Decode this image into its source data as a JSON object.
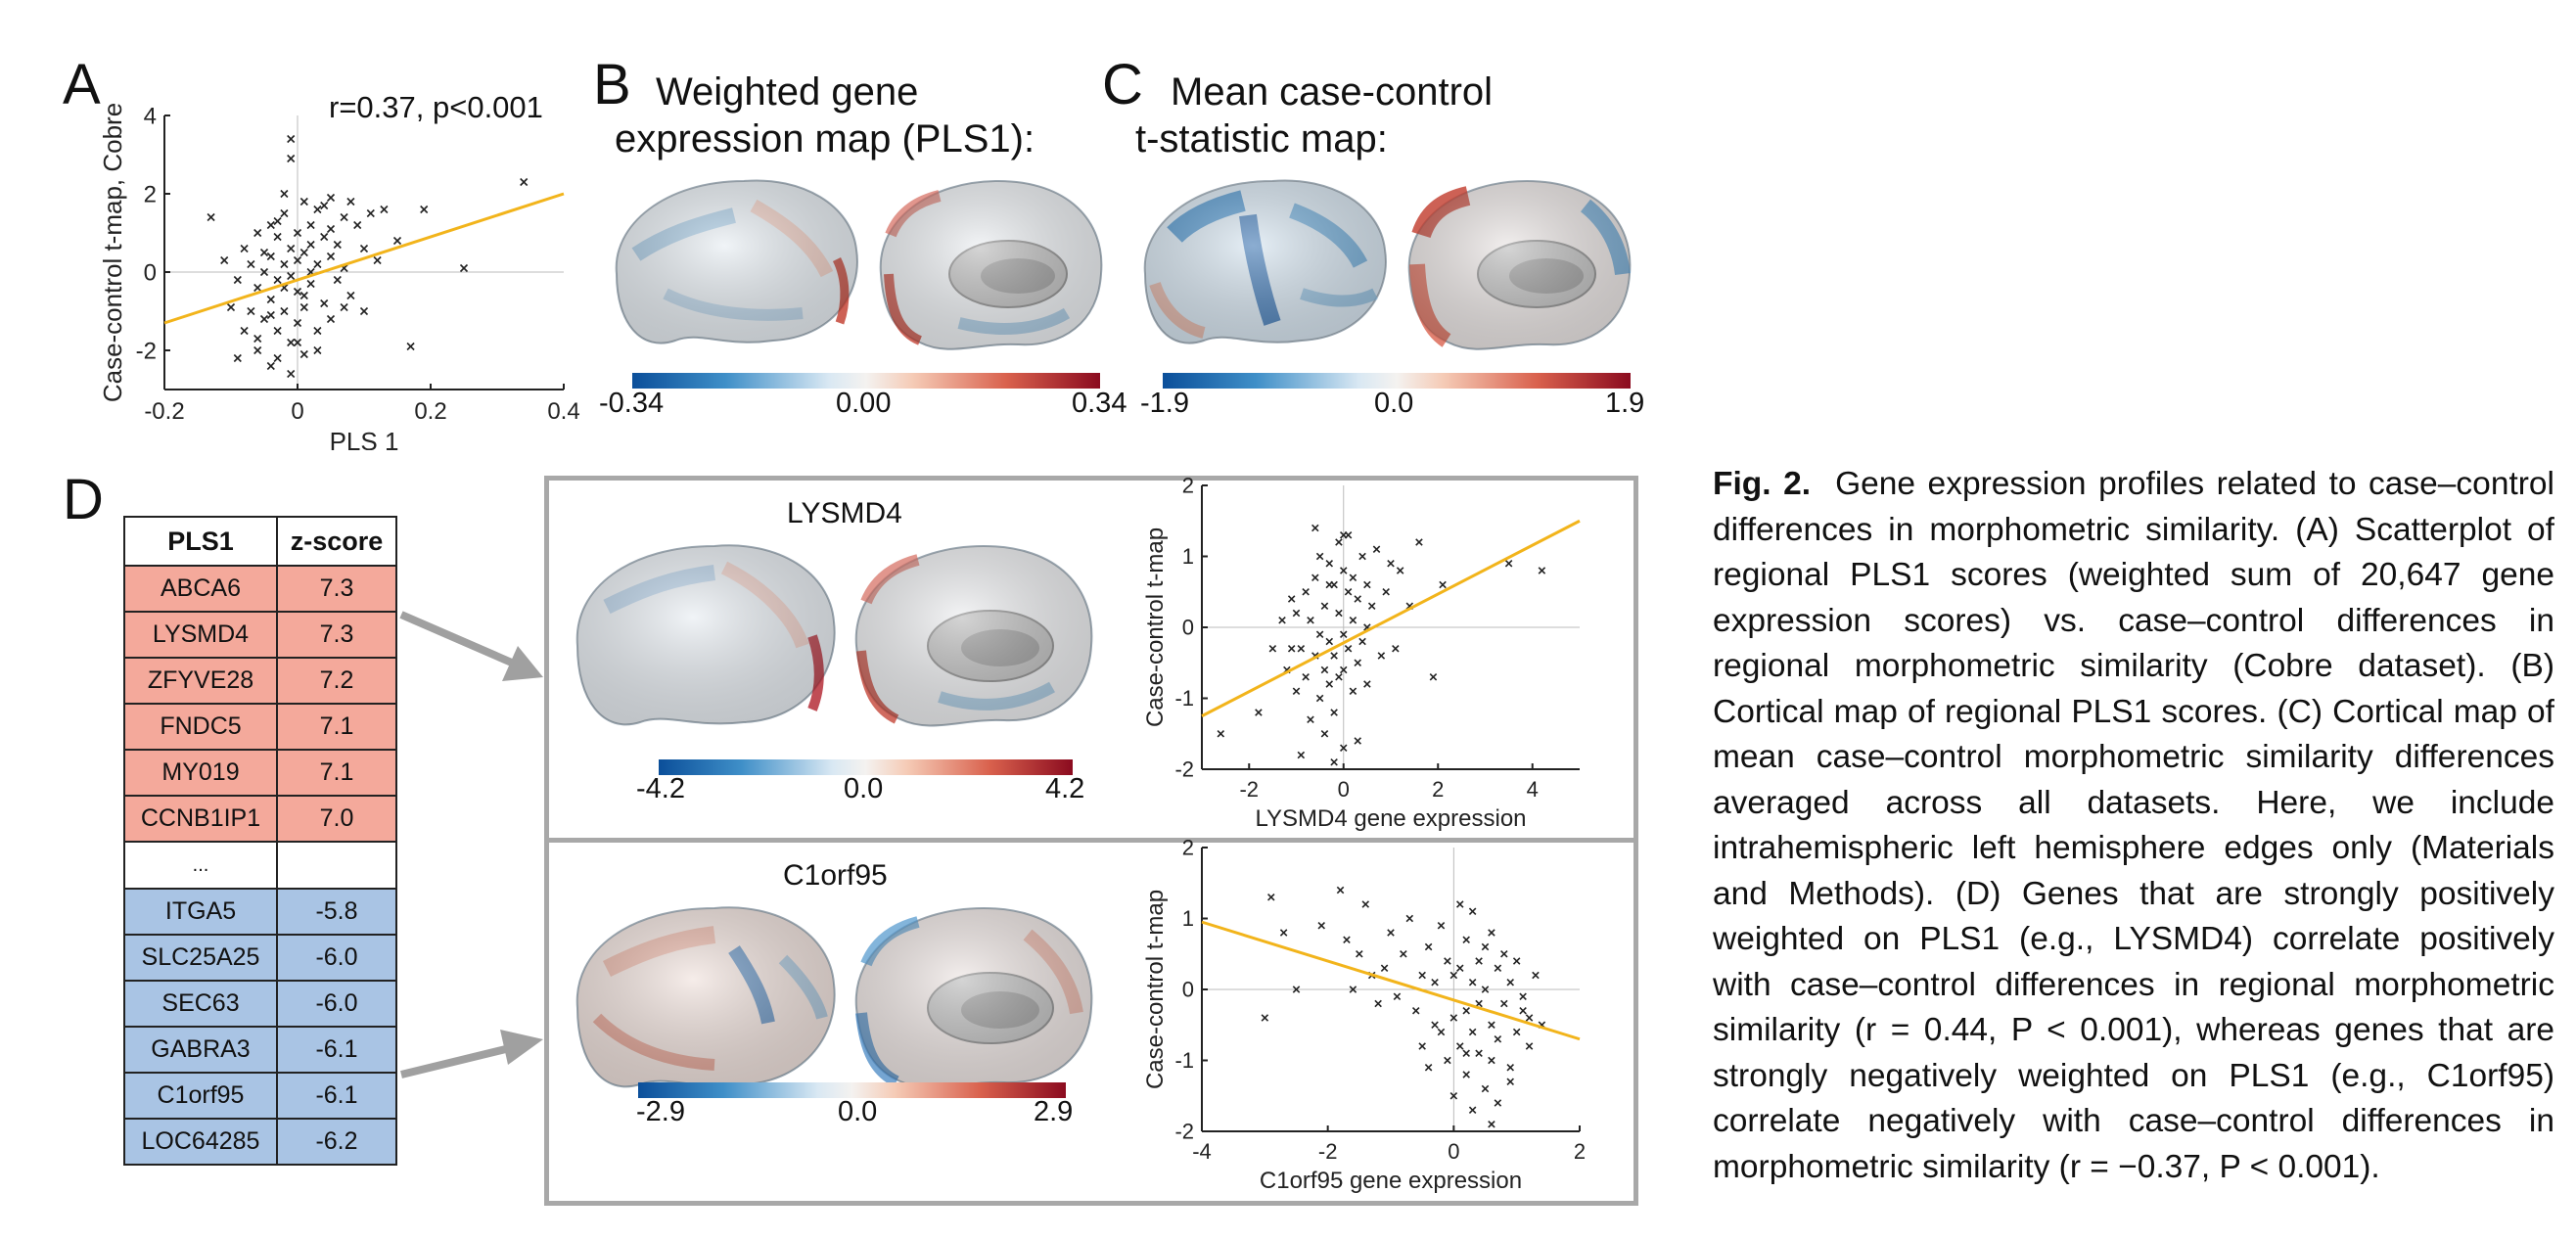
{
  "panels": {
    "A": {
      "letter": "A",
      "annotation": "r=0.37, p<0.001",
      "chart_data": {
        "type": "scatter",
        "xlabel": "PLS 1",
        "ylabel": "Case-control t-map, Cobre",
        "xlim": [
          -0.2,
          0.4
        ],
        "ylim": [
          -3,
          4
        ],
        "xticks": [
          "-0.2",
          "0",
          "0.2",
          "0.4"
        ],
        "yticks": [
          "-2",
          "0",
          "2",
          "4"
        ],
        "fit_line": {
          "x": [
            -0.2,
            0.4
          ],
          "y": [
            -1.3,
            2.0
          ]
        },
        "line_color": "#f2b41b",
        "points_x": [
          -0.13,
          -0.11,
          -0.1,
          -0.09,
          -0.08,
          -0.08,
          -0.07,
          -0.07,
          -0.06,
          -0.06,
          -0.06,
          -0.05,
          -0.05,
          -0.05,
          -0.04,
          -0.04,
          -0.04,
          -0.04,
          -0.03,
          -0.03,
          -0.03,
          -0.03,
          -0.02,
          -0.02,
          -0.02,
          -0.02,
          -0.01,
          -0.01,
          -0.01,
          -0.01,
          0.0,
          0.0,
          0.0,
          0.0,
          0.01,
          0.01,
          0.01,
          0.01,
          0.02,
          0.02,
          0.02,
          0.03,
          0.03,
          0.03,
          0.04,
          0.04,
          0.04,
          0.05,
          0.05,
          0.05,
          0.06,
          0.06,
          0.07,
          0.07,
          0.08,
          0.08,
          0.09,
          0.1,
          0.1,
          0.11,
          0.12,
          0.13,
          0.15,
          0.17,
          0.19,
          0.25,
          0.34,
          -0.01,
          -0.01,
          0.01,
          -0.06,
          -0.09,
          0.02,
          0.03,
          -0.02,
          0.05,
          0.0,
          -0.03,
          0.07,
          -0.04
        ],
        "points_y": [
          1.4,
          0.3,
          -0.9,
          -0.2,
          0.6,
          -1.5,
          0.2,
          -1.0,
          1.0,
          -0.4,
          -2.0,
          0.5,
          -1.2,
          0.0,
          -0.7,
          1.2,
          -2.4,
          0.4,
          -1.5,
          0.9,
          -0.2,
          -2.2,
          0.2,
          -1.0,
          1.5,
          -0.4,
          0.6,
          -1.8,
          3.4,
          2.9,
          -0.5,
          1.0,
          -1.3,
          0.3,
          1.8,
          -0.9,
          0.5,
          -2.1,
          1.2,
          -0.3,
          0.7,
          1.6,
          -1.5,
          0.2,
          0.9,
          -0.8,
          1.7,
          0.4,
          -1.2,
          1.9,
          0.7,
          -0.2,
          1.4,
          0.1,
          1.8,
          -0.6,
          1.2,
          0.6,
          -1.0,
          1.5,
          0.3,
          1.6,
          0.8,
          -1.9,
          1.6,
          0.1,
          2.3,
          -2.6,
          -0.1,
          -0.6,
          -1.7,
          -2.2,
          0.0,
          -2.0,
          2.0,
          1.1,
          -1.8,
          1.3,
          -0.9,
          -1.1
        ]
      }
    },
    "B": {
      "letter": "B",
      "title_line1": "Weighted gene",
      "title_line2": "expression map (PLS1):",
      "colorbar": {
        "min": "-0.34",
        "mid": "0.00",
        "max": "0.34"
      }
    },
    "C": {
      "letter": "C",
      "title_line1": "Mean case-control",
      "title_line2": "t-statistic map:",
      "colorbar": {
        "min": "-1.9",
        "mid": "0.0",
        "max": "1.9"
      }
    },
    "D": {
      "letter": "D",
      "table": {
        "headers": [
          "PLS1",
          "z-score"
        ],
        "positive": [
          {
            "gene": "ABCA6",
            "z": "7.3"
          },
          {
            "gene": "LYSMD4",
            "z": "7.3"
          },
          {
            "gene": "ZFYVE28",
            "z": "7.2"
          },
          {
            "gene": "FNDC5",
            "z": "7.1"
          },
          {
            "gene": "MY019",
            "z": "7.1"
          },
          {
            "gene": "CCNB1IP1",
            "z": "7.0"
          }
        ],
        "ellipsis": "...",
        "negative": [
          {
            "gene": "ITGA5",
            "z": "-5.8"
          },
          {
            "gene": "SLC25A25",
            "z": "-6.0"
          },
          {
            "gene": "SEC63",
            "z": "-6.0"
          },
          {
            "gene": "GABRA3",
            "z": "-6.1"
          },
          {
            "gene": "C1orf95",
            "z": "-6.1"
          },
          {
            "gene": "LOC64285",
            "z": "-6.2"
          }
        ]
      },
      "top_box": {
        "gene_title": "LYSMD4",
        "colorbar": {
          "min": "-4.2",
          "mid": "0.0",
          "max": "4.2"
        },
        "chart_data": {
          "type": "scatter",
          "xlabel": "LYSMD4 gene expression",
          "ylabel": "Case-control t-map",
          "xlim": [
            -3,
            5
          ],
          "ylim": [
            -2,
            2
          ],
          "xticks": [
            "-2",
            "0",
            "2",
            "4"
          ],
          "yticks": [
            "-2",
            "-1",
            "0",
            "1",
            "2"
          ],
          "fit_line": {
            "x": [
              -3,
              5
            ],
            "y": [
              -1.25,
              1.5
            ]
          },
          "points_x": [
            -2.6,
            -1.8,
            -1.5,
            -1.3,
            -1.2,
            -1.1,
            -1.0,
            -1.0,
            -0.9,
            -0.9,
            -0.8,
            -0.8,
            -0.7,
            -0.7,
            -0.6,
            -0.6,
            -0.5,
            -0.5,
            -0.5,
            -0.4,
            -0.4,
            -0.4,
            -0.3,
            -0.3,
            -0.3,
            -0.2,
            -0.2,
            -0.2,
            -0.1,
            -0.1,
            -0.1,
            0.0,
            0.0,
            0.0,
            0.0,
            0.1,
            0.1,
            0.1,
            0.2,
            0.2,
            0.2,
            0.3,
            0.3,
            0.4,
            0.4,
            0.5,
            0.5,
            0.6,
            0.7,
            0.8,
            0.9,
            1.0,
            1.1,
            1.2,
            1.4,
            1.6,
            1.9,
            2.1,
            3.5,
            4.2,
            -0.6,
            -0.2,
            0.3,
            -1.1,
            0.0,
            0.5,
            -0.3
          ],
          "points_y": [
            -1.5,
            -1.2,
            -0.3,
            0.1,
            -0.6,
            0.4,
            -0.9,
            0.2,
            -0.3,
            -1.8,
            0.5,
            -0.7,
            0.1,
            -1.3,
            0.7,
            -0.4,
            1.0,
            -0.1,
            -1.0,
            0.3,
            -0.6,
            -1.5,
            0.9,
            -0.2,
            -0.8,
            0.6,
            -0.4,
            -1.2,
            1.2,
            0.2,
            -0.7,
            0.8,
            -0.1,
            -0.6,
            -1.7,
            0.5,
            -0.3,
            1.3,
            0.1,
            -0.9,
            0.7,
            0.4,
            -0.5,
            1.0,
            -0.2,
            0.6,
            -0.8,
            0.3,
            1.1,
            -0.4,
            0.5,
            0.9,
            -0.3,
            0.8,
            0.3,
            1.2,
            -0.7,
            0.6,
            0.9,
            0.8,
            1.4,
            -1.9,
            -1.6,
            -0.3,
            1.3,
            0.0,
            0.6
          ]
        }
      },
      "bottom_box": {
        "gene_title": "C1orf95",
        "colorbar": {
          "min": "-2.9",
          "mid": "0.0",
          "max": "2.9"
        },
        "chart_data": {
          "type": "scatter",
          "xlabel": "C1orf95 gene expression",
          "ylabel": "Case-control t-map",
          "xlim": [
            -4,
            2
          ],
          "ylim": [
            -2,
            2
          ],
          "xticks": [
            "-4",
            "-2",
            "0",
            "2"
          ],
          "yticks": [
            "-2",
            "-1",
            "0",
            "1",
            "2"
          ],
          "fit_line": {
            "x": [
              -4,
              2
            ],
            "y": [
              0.95,
              -0.7
            ]
          },
          "points_x": [
            -3.0,
            -2.9,
            -2.7,
            -2.5,
            -2.1,
            -1.8,
            -1.6,
            -1.5,
            -1.4,
            -1.2,
            -1.1,
            -1.0,
            -0.9,
            -0.8,
            -0.7,
            -0.6,
            -0.5,
            -0.5,
            -0.4,
            -0.3,
            -0.3,
            -0.2,
            -0.2,
            -0.1,
            -0.1,
            0.0,
            0.0,
            0.1,
            0.1,
            0.1,
            0.2,
            0.2,
            0.2,
            0.3,
            0.3,
            0.3,
            0.4,
            0.4,
            0.4,
            0.5,
            0.5,
            0.5,
            0.6,
            0.6,
            0.6,
            0.7,
            0.7,
            0.8,
            0.8,
            0.9,
            0.9,
            1.0,
            1.0,
            1.1,
            1.2,
            1.3,
            1.4,
            -1.7,
            -1.3,
            0.0,
            0.3,
            0.6,
            0.9,
            1.2,
            -0.4,
            0.2,
            0.7,
            1.1
          ],
          "points_y": [
            -0.4,
            1.3,
            0.8,
            0.0,
            0.9,
            1.4,
            0.0,
            0.5,
            1.2,
            -0.2,
            0.3,
            0.8,
            -0.1,
            0.5,
            1.0,
            -0.3,
            0.2,
            -0.8,
            0.6,
            -0.5,
            0.1,
            0.9,
            -0.6,
            0.4,
            -1.0,
            0.2,
            -0.4,
            1.2,
            -0.8,
            0.3,
            -0.3,
            0.7,
            -1.2,
            0.1,
            -0.6,
            1.1,
            -0.9,
            0.4,
            -0.2,
            0.6,
            -1.4,
            0.0,
            -0.5,
            0.8,
            -1.0,
            0.3,
            -0.7,
            -0.2,
            0.5,
            -1.1,
            0.1,
            -0.6,
            0.4,
            -0.3,
            -0.8,
            0.2,
            -0.5,
            0.7,
            0.2,
            -1.5,
            -1.7,
            -1.9,
            -1.3,
            -0.4,
            -1.1,
            -0.9,
            -1.6,
            -0.1
          ]
        }
      }
    }
  },
  "caption": {
    "label": "Fig. 2.",
    "text": "Gene expression profiles related to case–control differences in morphometric similarity. (A) Scatterplot of regional PLS1 scores (weighted sum of 20,647 gene expression scores) vs. case–control differences in regional morphometric similarity (Cobre dataset). (B) Cortical map of regional PLS1 scores. (C) Cortical map of mean case–control morphometric similarity differences averaged across all datasets. Here, we include intrahemispheric left hemisphere edges only (Materials and Methods). (D) Genes that are strongly positively weighted on PLS1 (e.g., LYSMD4) correlate positively with case–control differences in regional morphometric similarity (r = 0.44, P < 0.001), whereas genes that are strongly negatively weighted on PLS1 (e.g., C1orf95) correlate negatively with case–control differences in morphometric similarity (r = −0.37, P < 0.001)."
  },
  "colors": {
    "fit_line": "#f2b41b",
    "positive_rows": "#f4a99b",
    "negative_rows": "#a9c4e4",
    "box_border": "#a8a8a8",
    "arrow": "#a0a0a0"
  }
}
